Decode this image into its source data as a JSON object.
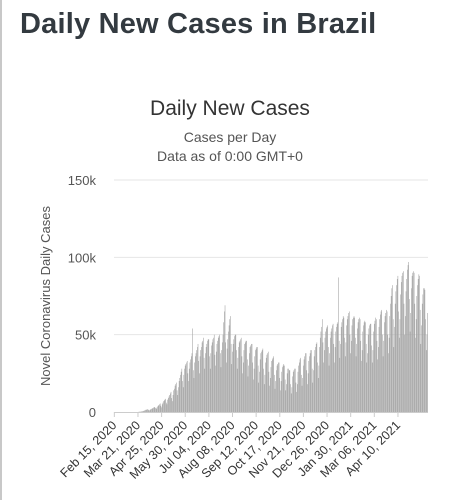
{
  "page": {
    "title": "Daily New Cases in Brazil"
  },
  "chart_data": {
    "type": "bar",
    "title": "Daily New Cases",
    "subtitle_line1": "Cases per Day",
    "subtitle_line2": "Data as of 0:00 GMT+0",
    "ylabel": "Novel Coronavirus Daily Cases",
    "xlabel": "",
    "ylim": [
      0,
      150000
    ],
    "yticks": [
      0,
      50000,
      100000,
      150000
    ],
    "ytick_labels": [
      "0",
      "50k",
      "100k",
      "150k"
    ],
    "grid": true,
    "bar_color": "#a3a3a3",
    "x_start": "Feb 15, 2020",
    "xtick_labels": [
      "Feb 15, 2020",
      "Mar 21, 2020",
      "Apr 25, 2020",
      "May 30, 2020",
      "Jul 04, 2020",
      "Aug 08, 2020",
      "Sep 12, 2020",
      "Oct 17, 2020",
      "Nov 21, 2020",
      "Dec 26, 2020",
      "Jan 30, 2021",
      "Mar 06, 2021",
      "Apr 10, 2021"
    ],
    "values": [
      0,
      0,
      0,
      0,
      0,
      0,
      0,
      0,
      0,
      0,
      0,
      0,
      0,
      0,
      0,
      0,
      0,
      0,
      0,
      0,
      0,
      0,
      0,
      0,
      0,
      0,
      0,
      0,
      0,
      0,
      0,
      0,
      0,
      0,
      0,
      0,
      100,
      150,
      200,
      250,
      300,
      400,
      500,
      600,
      800,
      1000,
      1200,
      1500,
      1500,
      1800,
      1600,
      1200,
      1000,
      1400,
      1800,
      2000,
      2200,
      2500,
      2800,
      3000,
      3200,
      2600,
      2000,
      2800,
      3500,
      4000,
      4500,
      5000,
      5500,
      4000,
      3000,
      5000,
      6000,
      7000,
      7500,
      8000,
      8500,
      6000,
      5000,
      8000,
      9000,
      10000,
      11000,
      12000,
      13000,
      9000,
      7000,
      11000,
      14000,
      15000,
      17000,
      18000,
      19000,
      14000,
      11000,
      16000,
      20000,
      22000,
      24000,
      26000,
      28000,
      20000,
      16000,
      24000,
      28000,
      30000,
      31000,
      32000,
      33000,
      25000,
      20000,
      28000,
      32000,
      34000,
      36000,
      38000,
      54000,
      27000,
      22000,
      32000,
      36000,
      38000,
      40000,
      42000,
      44000,
      33000,
      25000,
      36000,
      40000,
      42000,
      45000,
      46000,
      48000,
      35000,
      28000,
      38000,
      42000,
      44000,
      46000,
      47000,
      47000,
      36000,
      28000,
      38000,
      43000,
      45000,
      47000,
      48000,
      50000,
      37000,
      30000,
      39000,
      44000,
      46000,
      48000,
      49000,
      50000,
      38000,
      29000,
      40000,
      45000,
      50000,
      58000,
      65000,
      69000,
      45000,
      32000,
      41000,
      47000,
      52000,
      56000,
      60000,
      62000,
      44000,
      31000,
      39000,
      44000,
      47000,
      49000,
      50000,
      50000,
      40000,
      28000,
      35000,
      42000,
      45000,
      46000,
      47000,
      48000,
      36000,
      25000,
      32000,
      40000,
      44000,
      45000,
      46000,
      46000,
      34000,
      23000,
      30000,
      38000,
      42000,
      43000,
      44000,
      44000,
      32000,
      21000,
      28000,
      36000,
      40000,
      41000,
      42000,
      42000,
      30000,
      19000,
      26000,
      34000,
      38000,
      39000,
      40000,
      41000,
      28000,
      18000,
      24000,
      32000,
      35000,
      37000,
      38000,
      39000,
      26000,
      17000,
      22000,
      29000,
      33000,
      34000,
      35000,
      36000,
      24000,
      15000,
      20000,
      27000,
      30000,
      31000,
      32000,
      32000,
      22000,
      14000,
      20000,
      26000,
      29000,
      30000,
      31000,
      30000,
      21000,
      14000,
      18000,
      25000,
      28000,
      28000,
      27000,
      27000,
      18000,
      12000,
      16000,
      23000,
      26000,
      27000,
      28000,
      28000,
      19000,
      13000,
      18000,
      26000,
      30000,
      32000,
      34000,
      35000,
      24000,
      17000,
      22000,
      30000,
      34000,
      36000,
      38000,
      38000,
      27000,
      18000,
      25000,
      33000,
      36000,
      38000,
      40000,
      40000,
      28000,
      19000,
      27000,
      36000,
      40000,
      42000,
      44000,
      45000,
      32000,
      22000,
      30000,
      42000,
      48000,
      52000,
      55000,
      60000,
      45000,
      32000,
      40000,
      48000,
      52000,
      54000,
      55000,
      56000,
      42000,
      30000,
      38000,
      48000,
      52000,
      54000,
      56000,
      57000,
      44000,
      32000,
      42000,
      52000,
      55000,
      57000,
      58000,
      87000,
      46000,
      35000,
      44000,
      55000,
      58000,
      60000,
      62000,
      61000,
      48000,
      36000,
      45000,
      56000,
      60000,
      62000,
      64000,
      65000,
      50000,
      38000,
      46000,
      56000,
      60000,
      61000,
      62000,
      61000,
      48000,
      36000,
      44000,
      54000,
      58000,
      60000,
      61000,
      60000,
      46000,
      33000,
      40000,
      52000,
      56000,
      58000,
      59000,
      58000,
      44000,
      32000,
      38000,
      50000,
      54000,
      56000,
      57000,
      57000,
      43000,
      32000,
      40000,
      52000,
      57000,
      59000,
      61000,
      60000,
      46000,
      34000,
      42000,
      55000,
      60000,
      63000,
      65000,
      66000,
      50000,
      36000,
      46000,
      58000,
      62000,
      64000,
      66000,
      65000,
      50000,
      38000,
      48000,
      62000,
      70000,
      75000,
      80000,
      82000,
      60000,
      42000,
      55000,
      70000,
      78000,
      82000,
      86000,
      88000,
      65000,
      48000,
      60000,
      76000,
      84000,
      88000,
      90000,
      91000,
      70000,
      50000,
      62000,
      78000,
      86000,
      92000,
      95000,
      97000,
      73000,
      52000,
      64000,
      80000,
      88000,
      90000,
      91000,
      90000,
      70000,
      48000,
      60000,
      75000,
      82000,
      86000,
      89000,
      88000,
      66000,
      44000,
      56000,
      70000,
      76000,
      80000,
      80000,
      79000,
      60000,
      40000,
      50000,
      64000
    ]
  }
}
